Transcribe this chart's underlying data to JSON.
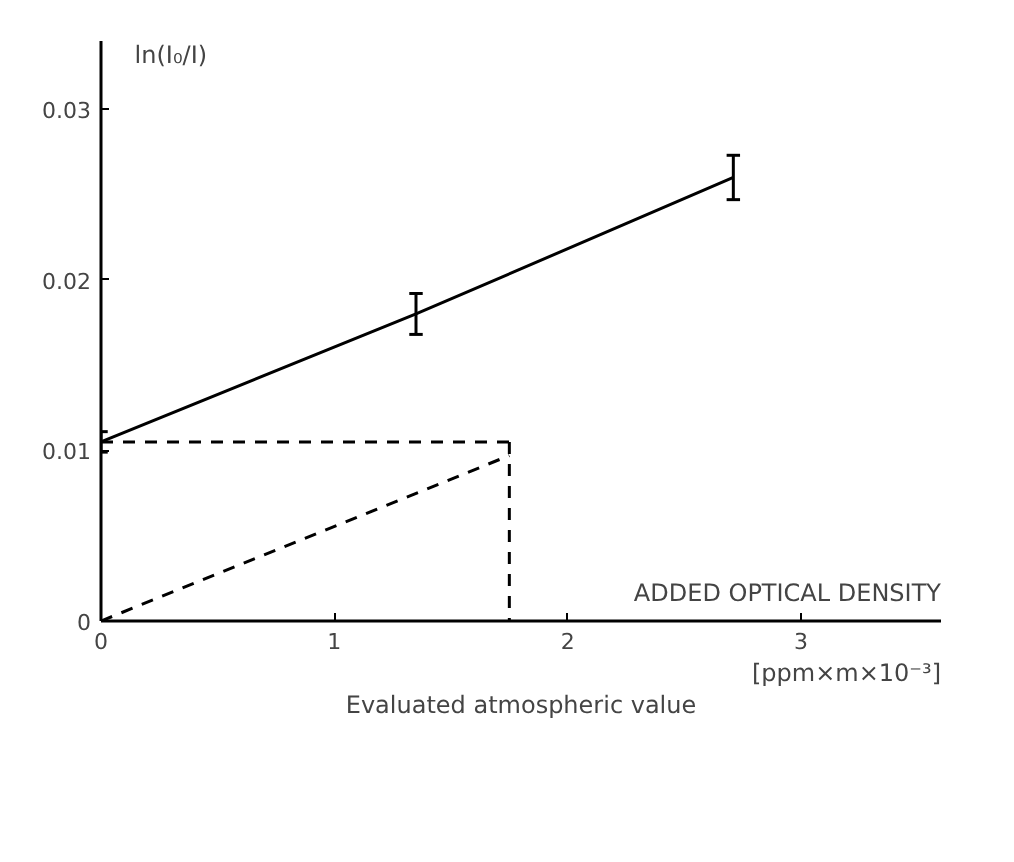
{
  "chart_data": {
    "type": "line",
    "xlabel": "ADDED OPTICAL DENSITY",
    "ylabel": "ln(I₀/I)",
    "xlim": [
      0,
      3.6
    ],
    "ylim": [
      0,
      0.034
    ],
    "xticks": [
      0,
      1,
      2,
      3
    ],
    "yticks": [
      0,
      0.01,
      0.02,
      0.03
    ],
    "grid": false,
    "marker": "none",
    "series": [
      {
        "color": "#000000",
        "x": [
          0,
          1.35,
          2.71
        ],
        "values": [
          0.0105,
          0.018,
          0.026
        ],
        "errors": [
          0.0006,
          0.0012,
          0.0013
        ],
        "line_style": "solid"
      },
      {
        "color": "#000000",
        "x": [
          0,
          1.75
        ],
        "values": [
          0.0105,
          0.0105
        ],
        "line_style": "dashed"
      },
      {
        "color": "#000000",
        "x": [
          1.75,
          1.75
        ],
        "values": [
          0.0105,
          0
        ],
        "line_style": "dashed"
      },
      {
        "color": "#000000",
        "x": [
          0,
          1.75
        ],
        "values": [
          0,
          0.0097
        ],
        "line_style": "dashed"
      }
    ],
    "annotations": [
      "[ppm×m×10⁻³]",
      "Evaluated atmospheric value"
    ]
  }
}
